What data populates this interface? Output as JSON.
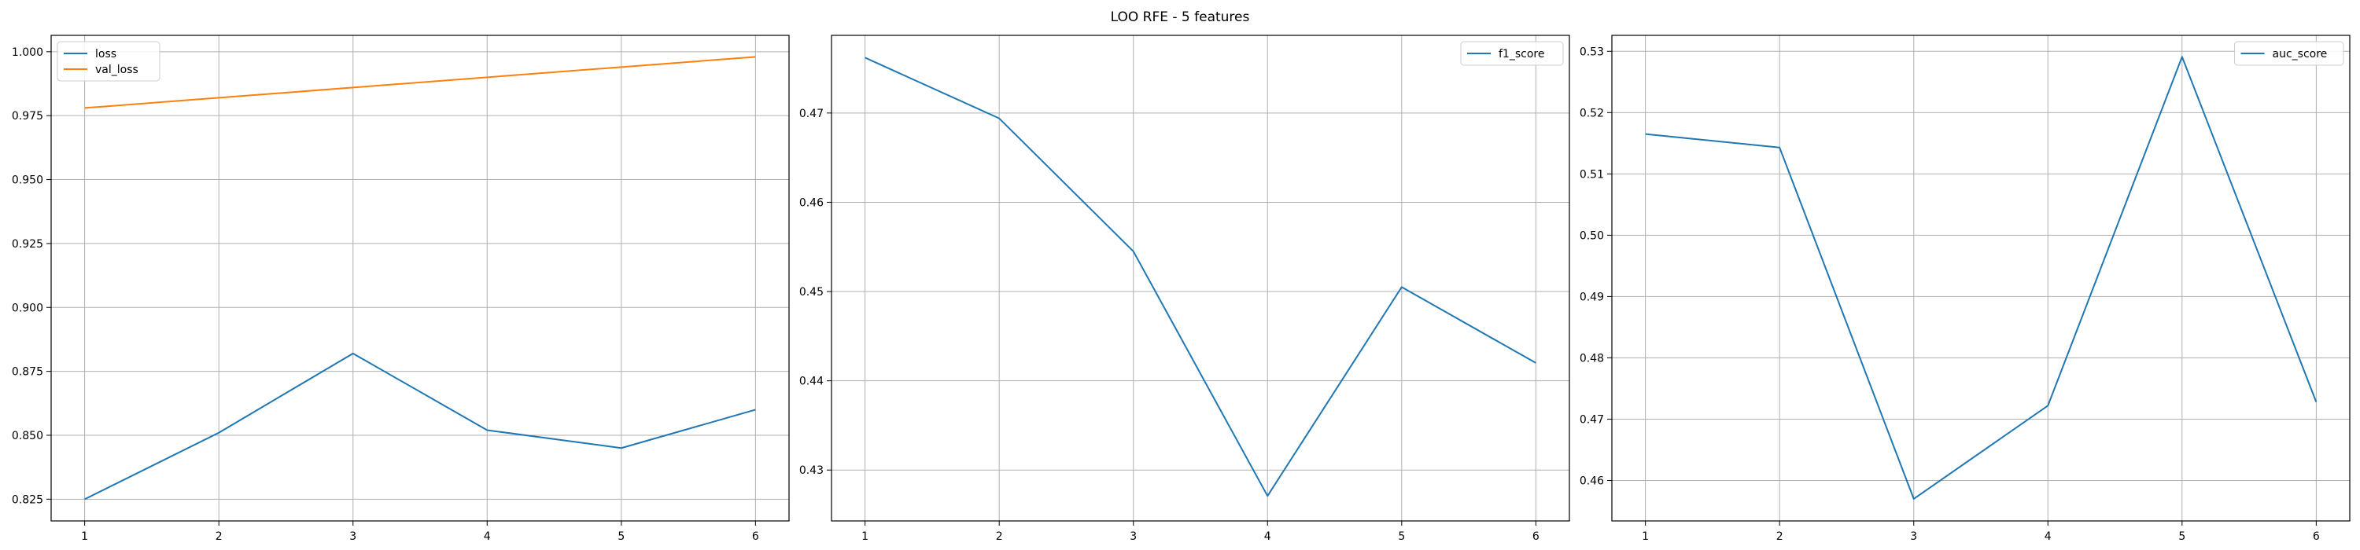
{
  "figure": {
    "title": "LOO RFE - 5 features"
  },
  "chart_data": [
    {
      "type": "line",
      "x": [
        1,
        2,
        3,
        4,
        5,
        6
      ],
      "xticks": [
        "1",
        "2",
        "3",
        "4",
        "5",
        "6"
      ],
      "xlim": [
        0.75,
        6.25
      ],
      "ylim": [
        0.8165,
        1.0064
      ],
      "yticks": [
        "0.825",
        "0.850",
        "0.875",
        "0.900",
        "0.925",
        "0.950",
        "0.975",
        "1.000"
      ],
      "grid": true,
      "legend_position": "top-left",
      "series": [
        {
          "name": "loss",
          "color": "#1f77b4",
          "values": [
            0.825,
            0.851,
            0.882,
            0.852,
            0.845,
            0.86
          ]
        },
        {
          "name": "val_loss",
          "color": "#ff7f0e",
          "values": [
            0.978,
            0.982,
            0.986,
            0.99,
            0.994,
            0.998
          ]
        }
      ]
    },
    {
      "type": "line",
      "x": [
        1,
        2,
        3,
        4,
        5,
        6
      ],
      "xticks": [
        "1",
        "2",
        "3",
        "4",
        "5",
        "6"
      ],
      "xlim": [
        0.75,
        6.25
      ],
      "ylim": [
        0.4243,
        0.4787
      ],
      "yticks": [
        "0.43",
        "0.44",
        "0.45",
        "0.46",
        "0.47"
      ],
      "grid": true,
      "legend_position": "top-right",
      "series": [
        {
          "name": "f1_score",
          "color": "#1f77b4",
          "values": [
            0.4762,
            0.4694,
            0.4545,
            0.4271,
            0.4505,
            0.442
          ]
        }
      ]
    },
    {
      "type": "line",
      "x": [
        1,
        2,
        3,
        4,
        5,
        6
      ],
      "xticks": [
        "1",
        "2",
        "3",
        "4",
        "5",
        "6"
      ],
      "xlim": [
        0.75,
        6.25
      ],
      "ylim": [
        0.4534,
        0.5326
      ],
      "yticks": [
        "0.46",
        "0.47",
        "0.48",
        "0.49",
        "0.50",
        "0.51",
        "0.52",
        "0.53"
      ],
      "grid": true,
      "legend_position": "top-right",
      "series": [
        {
          "name": "auc_score",
          "color": "#1f77b4",
          "values": [
            0.5165,
            0.5143,
            0.457,
            0.4722,
            0.5291,
            0.4728
          ]
        }
      ]
    }
  ]
}
